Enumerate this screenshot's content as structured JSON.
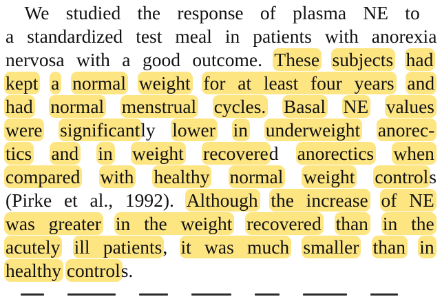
{
  "highlight_color": "#fde582",
  "text_color": "#111111",
  "lines": [
    [
      {
        "t": " We studied the response of plasma NE to",
        "h": false
      }
    ],
    [
      {
        "t": "a standardized test meal in patients with anorexia",
        "h": false
      }
    ],
    [
      {
        "t": "nervosa with a good outcome. ",
        "h": false
      },
      {
        "t": "These",
        "h": true
      },
      {
        "t": " ",
        "h": false
      },
      {
        "t": "subjects",
        "h": true
      },
      {
        "t": " ",
        "h": false
      },
      {
        "t": "had",
        "h": true
      }
    ],
    [
      {
        "t": "kept",
        "h": true
      },
      {
        "t": " ",
        "h": false
      },
      {
        "t": "a",
        "h": true
      },
      {
        "t": " ",
        "h": false
      },
      {
        "t": "normal",
        "h": true
      },
      {
        "t": " ",
        "h": false
      },
      {
        "t": "weight",
        "h": true
      },
      {
        "t": " ",
        "h": false
      },
      {
        "t": "for at least four years",
        "h": true
      },
      {
        "t": " ",
        "h": false
      },
      {
        "t": "and",
        "h": true
      }
    ],
    [
      {
        "t": "had",
        "h": true
      },
      {
        "t": " ",
        "h": false
      },
      {
        "t": "normal",
        "h": true
      },
      {
        "t": " ",
        "h": false
      },
      {
        "t": "menstrual",
        "h": true
      },
      {
        "t": " ",
        "h": false
      },
      {
        "t": "cycles.",
        "h": true
      },
      {
        "t": " ",
        "h": false
      },
      {
        "t": "Basal",
        "h": true
      },
      {
        "t": " ",
        "h": false
      },
      {
        "t": "NE",
        "h": true
      },
      {
        "t": " ",
        "h": false
      },
      {
        "t": "values",
        "h": true
      }
    ],
    [
      {
        "t": "were",
        "h": true
      },
      {
        "t": " ",
        "h": false
      },
      {
        "t": "significant",
        "h": true
      },
      {
        "t": "ly ",
        "h": false
      },
      {
        "t": "lower",
        "h": true
      },
      {
        "t": " ",
        "h": false
      },
      {
        "t": "in",
        "h": true
      },
      {
        "t": " ",
        "h": false
      },
      {
        "t": "underweight",
        "h": true
      },
      {
        "t": " ",
        "h": false
      },
      {
        "t": "anorec-",
        "h": true
      }
    ],
    [
      {
        "t": "tics",
        "h": true
      },
      {
        "t": " ",
        "h": false
      },
      {
        "t": "and",
        "h": true
      },
      {
        "t": " ",
        "h": false
      },
      {
        "t": "in",
        "h": true
      },
      {
        "t": " ",
        "h": false
      },
      {
        "t": "weight",
        "h": true
      },
      {
        "t": " ",
        "h": false
      },
      {
        "t": "recovere",
        "h": true
      },
      {
        "t": "d ",
        "h": false
      },
      {
        "t": "anorectics",
        "h": true
      },
      {
        "t": " ",
        "h": false
      },
      {
        "t": "when",
        "h": true
      }
    ],
    [
      {
        "t": "compared",
        "h": true
      },
      {
        "t": " ",
        "h": false
      },
      {
        "t": "with",
        "h": true
      },
      {
        "t": " ",
        "h": false
      },
      {
        "t": "healthy",
        "h": true
      },
      {
        "t": " ",
        "h": false
      },
      {
        "t": "normal",
        "h": true
      },
      {
        "t": " ",
        "h": false
      },
      {
        "t": "weight",
        "h": true
      },
      {
        "t": " ",
        "h": false
      },
      {
        "t": "control",
        "h": true
      },
      {
        "t": "s",
        "h": false
      }
    ],
    [
      {
        "t": "(Pirke et al., 1992). ",
        "h": false
      },
      {
        "t": "Although",
        "h": true
      },
      {
        "t": " ",
        "h": false
      },
      {
        "t": "the increase",
        "h": true
      },
      {
        "t": " ",
        "h": false
      },
      {
        "t": "of NE",
        "h": true
      }
    ],
    [
      {
        "t": "was greater",
        "h": true
      },
      {
        "t": " ",
        "h": false
      },
      {
        "t": "in the weight",
        "h": true
      },
      {
        "t": " ",
        "h": false
      },
      {
        "t": "recovered",
        "h": true
      },
      {
        "t": " ",
        "h": false
      },
      {
        "t": "than",
        "h": true
      },
      {
        "t": " ",
        "h": false
      },
      {
        "t": "in the",
        "h": true
      }
    ],
    [
      {
        "t": "acutely",
        "h": true
      },
      {
        "t": " ",
        "h": false
      },
      {
        "t": "ill patients",
        "h": true
      },
      {
        "t": ", ",
        "h": false
      },
      {
        "t": "it was much",
        "h": true
      },
      {
        "t": " ",
        "h": false
      },
      {
        "t": "smaller",
        "h": true
      },
      {
        "t": " ",
        "h": false
      },
      {
        "t": "than",
        "h": true
      },
      {
        "t": " ",
        "h": false
      },
      {
        "t": "in",
        "h": true
      }
    ],
    [
      {
        "t": "healthy",
        "h": true
      },
      {
        "t": " ",
        "h": false
      },
      {
        "t": "control",
        "h": true
      },
      {
        "t": "s.",
        "h": false
      }
    ]
  ]
}
